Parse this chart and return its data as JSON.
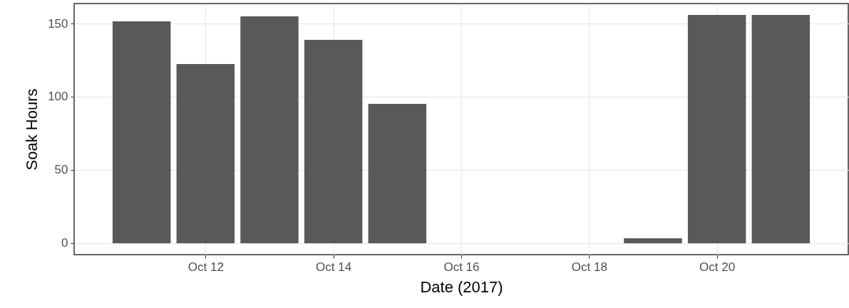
{
  "chart_data": {
    "type": "bar",
    "xlabel": "Date (2017)",
    "ylabel": "Soak Hours",
    "x": [
      "2017-10-11",
      "2017-10-12",
      "2017-10-13",
      "2017-10-14",
      "2017-10-15",
      "2017-10-19",
      "2017-10-20",
      "2017-10-21"
    ],
    "values": [
      151.5,
      122.3,
      154.9,
      138.8,
      95.1,
      3.4,
      155.8,
      155.8
    ],
    "color": "#595959",
    "xlim": [
      "2017-10-10",
      "2017-10-22"
    ],
    "xticks": [
      {
        "value": "2017-10-12",
        "label": "Oct 12"
      },
      {
        "value": "2017-10-14",
        "label": "Oct 14"
      },
      {
        "value": "2017-10-16",
        "label": "Oct 16"
      },
      {
        "value": "2017-10-18",
        "label": "Oct 18"
      },
      {
        "value": "2017-10-20",
        "label": "Oct 20"
      }
    ],
    "ylim": [
      -7.8,
      163.6
    ],
    "yticks": [
      0,
      50,
      100,
      150
    ],
    "grid": true
  }
}
